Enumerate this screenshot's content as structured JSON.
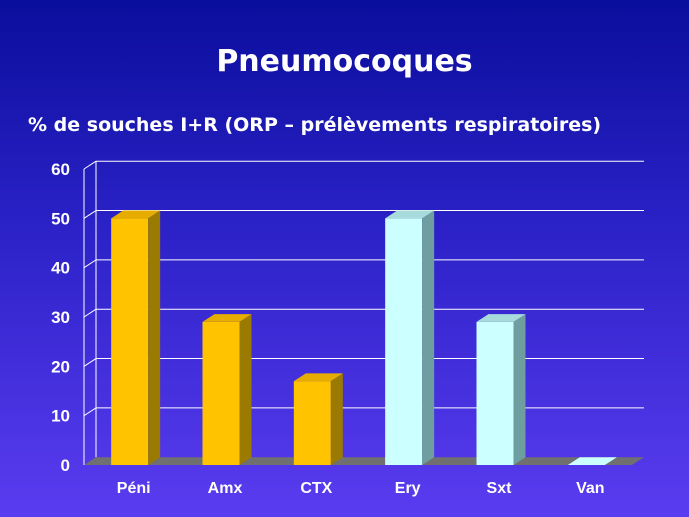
{
  "slide": {
    "title": "Pneumocoques",
    "subtitle": "% de souches I+R (ORP – prélèvements respiratoires)"
  },
  "chart_data": {
    "type": "bar",
    "title": "Pneumocoques",
    "subtitle": "% de souches I+R (ORP – prélèvements respiratoires)",
    "categories": [
      "Péni",
      "Amx",
      "CTX",
      "Ery",
      "Sxt",
      "Van"
    ],
    "values": [
      50,
      29,
      17,
      50,
      29,
      0
    ],
    "ylim": [
      0,
      60
    ],
    "yticks": [
      0,
      10,
      20,
      30,
      40,
      50,
      60
    ],
    "grid": true,
    "legend": "none",
    "colors": {
      "front": [
        "#ffc300",
        "#ffc300",
        "#ffc300",
        "#ccffff",
        "#ccffff",
        "#ccffff"
      ],
      "side": [
        "#9a7a00",
        "#9a7a00",
        "#9a7a00",
        "#6f9ea0",
        "#6f9ea0",
        "#6f9ea0"
      ],
      "top": [
        "#e6ad00",
        "#e6ad00",
        "#e6ad00",
        "#a8dcdc",
        "#a8dcdc",
        "#a8dcdc"
      ],
      "grid": "#ffffff",
      "floor": "#707070",
      "text": "#ffffff"
    }
  }
}
